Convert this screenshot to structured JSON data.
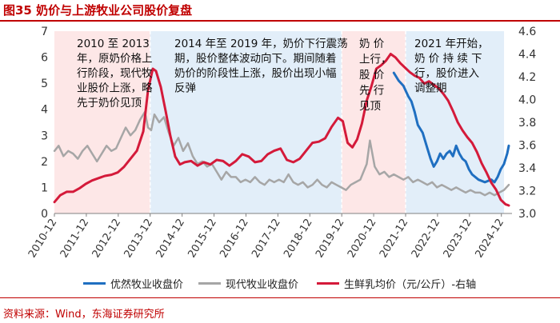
{
  "figure_title": "图35 奶价与上游牧业公司股价复盘",
  "source": "资料来源：Wind，东海证券研究所",
  "colors": {
    "brand": "#c00000",
    "youran": "#1f6fc1",
    "xiandai": "#a6a6a6",
    "milk": "#d41a3a",
    "shade_pink": "#fde7e7",
    "shade_blue": "#e2eef9"
  },
  "chart_data": {
    "type": "line",
    "title": "奶价与上游牧业公司股价复盘",
    "xlabel": "",
    "ylabel_left": "",
    "ylabel_right": "",
    "y_left_lim": [
      0,
      7
    ],
    "y_left_ticks": [
      "0",
      "1",
      "2",
      "3",
      "4",
      "5",
      "6",
      "7"
    ],
    "y_right_lim": [
      3.0,
      4.6
    ],
    "y_right_ticks": [
      "3.0",
      "3.2",
      "3.4",
      "3.6",
      "3.8",
      "4.0",
      "4.2",
      "4.4",
      "4.6"
    ],
    "x_range": [
      2010.917,
      2025.25
    ],
    "x_ticks": [
      "2010-12",
      "2011-12",
      "2012-12",
      "2013-12",
      "2014-12",
      "2015-12",
      "2016-12",
      "2017-12",
      "2018-12",
      "2019-12",
      "2020-12",
      "2021-12",
      "2022-12",
      "2023-12",
      "2024-12"
    ],
    "legend_position": "bottom",
    "series": [
      {
        "name": "优然牧业收盘价",
        "axis": "left",
        "x": [
          2021.55,
          2021.7,
          2021.85,
          2022.0,
          2022.1,
          2022.2,
          2022.3,
          2022.45,
          2022.6,
          2022.7,
          2022.8,
          2022.9,
          2023.0,
          2023.1,
          2023.2,
          2023.3,
          2023.4,
          2023.5,
          2023.6,
          2023.7,
          2023.8,
          2023.9,
          2024.0,
          2024.2,
          2024.4,
          2024.6,
          2024.7,
          2024.8,
          2024.9,
          2025.0,
          2025.1,
          2025.15
        ],
        "values": [
          5.4,
          5.1,
          4.9,
          4.5,
          4.3,
          3.9,
          3.4,
          3.1,
          2.5,
          2.1,
          1.8,
          2.0,
          2.3,
          2.1,
          2.3,
          2.4,
          2.2,
          2.6,
          2.3,
          2.1,
          2.0,
          1.7,
          1.5,
          1.3,
          1.2,
          1.3,
          1.2,
          1.4,
          1.7,
          1.9,
          2.3,
          2.6
        ]
      },
      {
        "name": "现代牧业收盘价",
        "axis": "left",
        "x": [
          2010.92,
          2011.05,
          2011.2,
          2011.35,
          2011.5,
          2011.65,
          2011.8,
          2011.95,
          2012.1,
          2012.25,
          2012.4,
          2012.55,
          2012.7,
          2012.85,
          2013.0,
          2013.15,
          2013.3,
          2013.45,
          2013.6,
          2013.75,
          2013.85,
          2013.95,
          2014.05,
          2014.2,
          2014.35,
          2014.5,
          2014.65,
          2014.8,
          2014.95,
          2015.1,
          2015.25,
          2015.4,
          2015.55,
          2015.7,
          2015.85,
          2016.0,
          2016.15,
          2016.3,
          2016.45,
          2016.6,
          2016.75,
          2016.9,
          2017.05,
          2017.2,
          2017.35,
          2017.5,
          2017.65,
          2017.8,
          2017.95,
          2018.1,
          2018.25,
          2018.4,
          2018.55,
          2018.7,
          2018.85,
          2019.0,
          2019.15,
          2019.3,
          2019.45,
          2019.6,
          2019.75,
          2019.9,
          2020.05,
          2020.2,
          2020.35,
          2020.5,
          2020.6,
          2020.7,
          2020.8,
          2020.95,
          2021.1,
          2021.25,
          2021.4,
          2021.55,
          2021.7,
          2021.85,
          2022.0,
          2022.15,
          2022.3,
          2022.45,
          2022.6,
          2022.75,
          2022.9,
          2023.05,
          2023.2,
          2023.35,
          2023.5,
          2023.65,
          2023.8,
          2023.95,
          2024.1,
          2024.25,
          2024.4,
          2024.55,
          2024.7,
          2024.85,
          2025.0,
          2025.15
        ],
        "values": [
          2.4,
          2.6,
          2.2,
          2.4,
          2.3,
          2.1,
          2.4,
          2.6,
          2.3,
          2.0,
          2.3,
          2.6,
          2.4,
          2.5,
          2.9,
          3.3,
          3.0,
          3.2,
          3.6,
          3.9,
          3.3,
          3.2,
          3.8,
          3.5,
          3.7,
          3.1,
          2.6,
          2.9,
          2.4,
          2.7,
          2.2,
          1.9,
          2.0,
          1.8,
          1.9,
          1.6,
          1.3,
          1.6,
          1.4,
          1.4,
          1.2,
          1.3,
          1.2,
          1.4,
          1.2,
          1.1,
          1.3,
          1.2,
          1.3,
          1.2,
          1.5,
          1.2,
          1.1,
          1.2,
          1.0,
          1.1,
          1.3,
          1.1,
          1.0,
          1.2,
          1.1,
          1.0,
          0.9,
          1.1,
          1.2,
          1.3,
          1.6,
          1.9,
          2.8,
          1.8,
          1.5,
          1.6,
          1.4,
          1.5,
          1.4,
          1.3,
          1.4,
          1.2,
          1.3,
          1.2,
          1.1,
          1.2,
          1.0,
          1.1,
          1.0,
          0.9,
          1.0,
          0.9,
          0.8,
          0.9,
          0.8,
          0.8,
          0.7,
          0.8,
          0.7,
          0.8,
          0.9,
          1.1
        ]
      },
      {
        "name": "生鲜乳均价（元/公斤）-右轴",
        "axis": "right",
        "x": [
          2010.92,
          2011.1,
          2011.3,
          2011.5,
          2011.7,
          2011.9,
          2012.1,
          2012.3,
          2012.5,
          2012.7,
          2012.9,
          2013.1,
          2013.3,
          2013.5,
          2013.7,
          2013.85,
          2014.0,
          2014.1,
          2014.25,
          2014.4,
          2014.55,
          2014.7,
          2014.85,
          2015.0,
          2015.2,
          2015.4,
          2015.6,
          2015.8,
          2016.0,
          2016.2,
          2016.4,
          2016.6,
          2016.8,
          2017.0,
          2017.2,
          2017.4,
          2017.6,
          2017.8,
          2018.0,
          2018.2,
          2018.4,
          2018.6,
          2018.8,
          2019.0,
          2019.2,
          2019.4,
          2019.6,
          2019.8,
          2019.95,
          2020.1,
          2020.25,
          2020.4,
          2020.55,
          2020.7,
          2020.85,
          2021.0,
          2021.15,
          2021.3,
          2021.45,
          2021.6,
          2021.75,
          2021.9,
          2022.05,
          2022.2,
          2022.35,
          2022.5,
          2022.65,
          2022.8,
          2022.95,
          2023.1,
          2023.25,
          2023.4,
          2023.55,
          2023.7,
          2023.85,
          2024.0,
          2024.15,
          2024.3,
          2024.45,
          2024.6,
          2024.75,
          2024.9,
          2025.05,
          2025.15
        ],
        "values": [
          3.1,
          3.16,
          3.19,
          3.19,
          3.22,
          3.26,
          3.29,
          3.31,
          3.33,
          3.34,
          3.36,
          3.41,
          3.48,
          3.55,
          3.72,
          4.08,
          4.27,
          4.25,
          4.11,
          3.9,
          3.68,
          3.5,
          3.43,
          3.45,
          3.46,
          3.42,
          3.45,
          3.43,
          3.47,
          3.46,
          3.42,
          3.46,
          3.52,
          3.5,
          3.45,
          3.46,
          3.52,
          3.55,
          3.57,
          3.47,
          3.45,
          3.48,
          3.55,
          3.62,
          3.63,
          3.66,
          3.76,
          3.84,
          3.81,
          3.62,
          3.58,
          3.65,
          3.79,
          3.99,
          4.12,
          4.27,
          4.3,
          4.34,
          4.4,
          4.37,
          4.32,
          4.28,
          4.24,
          4.21,
          4.19,
          4.14,
          4.16,
          4.13,
          4.1,
          4.05,
          3.99,
          3.9,
          3.8,
          3.73,
          3.67,
          3.62,
          3.54,
          3.44,
          3.36,
          3.27,
          3.21,
          3.12,
          3.08,
          3.07
        ]
      }
    ],
    "shaded_periods": [
      {
        "start": 2010.917,
        "end": 2013.917,
        "color": "pink"
      },
      {
        "start": 2013.917,
        "end": 2019.917,
        "color": "blue"
      },
      {
        "start": 2019.917,
        "end": 2021.917,
        "color": "pink"
      },
      {
        "start": 2021.917,
        "end": 2025.0,
        "color": "blue"
      }
    ],
    "annotations": [
      {
        "id": "period1",
        "lines": [
          "2010 至 2013",
          "年，原奶价格上",
          "行阶段，现代牧",
          "业股价上涨，略",
          "先于奶价见顶"
        ]
      },
      {
        "id": "period2",
        "lines": [
          "2014 年至 2019 年，奶价下行震荡",
          "期，股价整体波动向下。期间随着",
          "奶价的阶段性上涨，股价出现小幅",
          "反弹"
        ]
      },
      {
        "id": "period3",
        "lines": [
          "奶 价",
          "上行，",
          "股 价",
          "先 行",
          "见顶"
        ]
      },
      {
        "id": "period4",
        "lines": [
          "2021 年开始，",
          "奶 价 持 续 下",
          "行，股价进入",
          "调整期"
        ]
      }
    ]
  }
}
